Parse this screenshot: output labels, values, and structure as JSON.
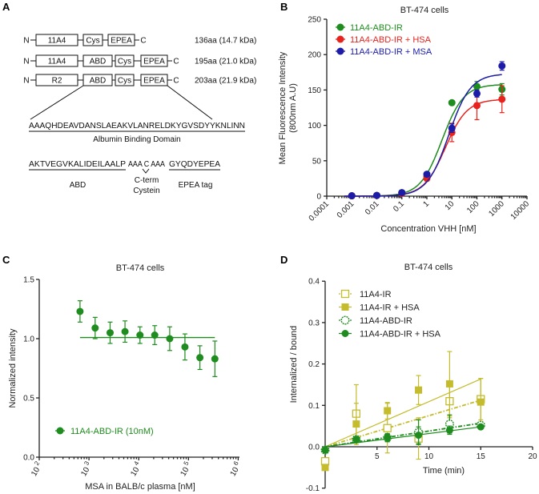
{
  "panel_a": {
    "label": "A",
    "constructs": [
      {
        "domains": [
          "11A4",
          "Cys",
          "EPEA"
        ],
        "size": "136aa (14.7 kDa)"
      },
      {
        "domains": [
          "11A4",
          "ABD",
          "Cys",
          "EPEA"
        ],
        "size": "195aa (21.0 kDa)"
      },
      {
        "domains": [
          "R2",
          "ABD",
          "Cys",
          "EPEA"
        ],
        "size": "203aa (21.9 kDa)"
      }
    ],
    "n_term": "N",
    "c_term": "C",
    "abd_sequence": "AAAQHDEAVDANSLAEAKVLANRELDKYGVSDYYKNLINN",
    "abd_sequence_label": "Albumin Binding Domain",
    "seq2_abd": "AKTVEGVKALIDEILAALP",
    "seq2_linker": "AAA C AAA",
    "seq2_tag": "GYQDYEPEA",
    "seq2_abd_label": "ABD",
    "seq2_cys_label_1": "C-term",
    "seq2_cys_label_2": "Cystein",
    "seq2_tag_label": "EPEA tag"
  },
  "chart_data": [
    {
      "panel": "B",
      "type": "scatter",
      "title": "BT-474 cells",
      "xlabel": "Concentration VHH [nM]",
      "ylabel": [
        "Mean Fluorescence Intensity",
        "(800nm A.U)"
      ],
      "xscale": "log",
      "xlim": [
        0.0001,
        10000
      ],
      "ylim": [
        0,
        250
      ],
      "xticks": [
        "0.0001",
        "0.001",
        "0.01",
        "0.1",
        "1",
        "10",
        "100",
        "1000",
        "10000"
      ],
      "yticks": [
        0,
        50,
        100,
        150,
        200,
        250
      ],
      "legend_position": "top-left",
      "x": [
        0.001,
        0.01,
        0.1,
        1,
        10,
        100,
        1000
      ],
      "series": [
        {
          "name": "11A4-ABD-IR",
          "color": "#1e8c1e",
          "values": [
            0.5,
            1,
            5,
            28,
            132,
            155,
            151
          ],
          "errors": [
            0,
            0,
            1,
            2,
            3,
            7,
            8
          ],
          "fit": {
            "type": "sigmoid",
            "top": 158,
            "ec50": 4
          }
        },
        {
          "name": "11A4-ABD-IR + HSA",
          "color": "#e8231e",
          "values": [
            0.5,
            1,
            4,
            25,
            90,
            128,
            137
          ],
          "errors": [
            0,
            0,
            1,
            2,
            13,
            20,
            19
          ],
          "fit": {
            "type": "sigmoid",
            "top": 137,
            "ec50": 5.5
          }
        },
        {
          "name": "11A4-ABD-IR + MSA",
          "color": "#1c1ca8",
          "values": [
            0.5,
            1,
            5,
            31,
            96,
            145,
            184
          ],
          "errors": [
            0,
            0,
            1,
            3,
            6,
            5,
            6
          ],
          "fit": {
            "type": "sigmoid",
            "top": 173,
            "ec50": 7.5
          }
        }
      ]
    },
    {
      "panel": "C",
      "type": "scatter",
      "title": "BT-474 cells",
      "xlabel": "MSA in BALB/c plasma [nM]",
      "ylabel": "Normalized intensity",
      "xscale": "log",
      "xlim": [
        100,
        1000000
      ],
      "ylim": [
        0,
        1.5
      ],
      "xtick_exponents": [
        2,
        3,
        4,
        5,
        6
      ],
      "xtick_base": "10",
      "yticks": [
        "0.0",
        "0.5",
        "1.0",
        "1.5"
      ],
      "legend_position": "bottom-left",
      "x": [
        660,
        1330,
        2660,
        5300,
        10600,
        21000,
        42000,
        85000,
        170000,
        340000
      ],
      "series": [
        {
          "name": "11A4-ABD-IR (10nM)",
          "color": "#1e8c1e",
          "values": [
            1.23,
            1.09,
            1.05,
            1.06,
            1.03,
            1.03,
            1.0,
            0.93,
            0.84,
            0.83
          ],
          "errors": [
            0.09,
            0.09,
            0.09,
            0.09,
            0.07,
            0.08,
            0.1,
            0.11,
            0.1,
            0.15
          ],
          "fit": {
            "type": "constant",
            "value": 1.01
          }
        }
      ]
    },
    {
      "panel": "D",
      "type": "scatter",
      "title": "BT-474 cells",
      "xlabel": "Time (min)",
      "ylabel": "Internalized / bound",
      "xlim": [
        0,
        20
      ],
      "ylim": [
        -0.1,
        0.4
      ],
      "xticks": [
        "5",
        "10",
        "15",
        "20"
      ],
      "yticks": [
        "-0.1",
        "0.0",
        "0.1",
        "0.2",
        "0.3",
        "0.4"
      ],
      "legend_position": "top-left",
      "x": [
        0,
        3,
        6,
        9,
        12,
        15
      ],
      "series": [
        {
          "name": "11A4-IR",
          "color": "#c4bc2c",
          "marker": "open-square",
          "line": "dash-dot",
          "values": [
            -0.035,
            0.08,
            0.045,
            0.02,
            0.11,
            0.115
          ],
          "errors": [
            0,
            0.07,
            0.06,
            0.05,
            0.04,
            0.05
          ],
          "fit": {
            "type": "linear",
            "slope": 0.0075
          }
        },
        {
          "name": "11A4-IR + HSA",
          "color": "#c4bc2c",
          "marker": "filled-square",
          "line": "solid",
          "values": [
            -0.05,
            0.055,
            0.087,
            0.137,
            0.152,
            0.108
          ],
          "errors": [
            0,
            0.05,
            0.02,
            0.035,
            0.078,
            0.057
          ],
          "fit": {
            "type": "linear",
            "slope": 0.0109
          }
        },
        {
          "name": "11A4-ABD-IR",
          "color": "#1e8c1e",
          "marker": "open-circle",
          "line": "dash-dot",
          "values": [
            -0.008,
            0.018,
            0.022,
            0.035,
            0.055,
            0.052
          ],
          "errors": [
            0,
            0.005,
            0.01,
            0.03,
            0.022,
            0.005
          ],
          "fit": {
            "type": "linear",
            "slope": 0.0038
          }
        },
        {
          "name": "11A4-ABD-IR + HSA",
          "color": "#1e8c1e",
          "marker": "filled-circle",
          "line": "solid",
          "values": [
            -0.008,
            0.018,
            0.022,
            0.028,
            0.04,
            0.048
          ],
          "errors": [
            0,
            0.004,
            0.008,
            0.02,
            0.01,
            0.004
          ],
          "fit": {
            "type": "linear",
            "slope": 0.0032
          }
        }
      ]
    }
  ]
}
